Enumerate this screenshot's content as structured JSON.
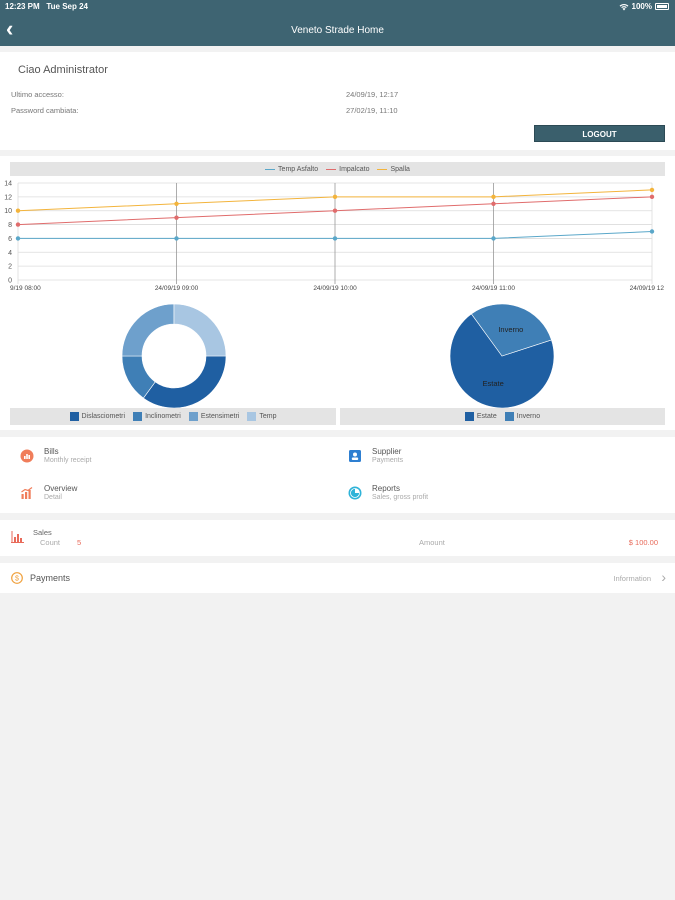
{
  "status": {
    "time": "12:23 PM",
    "date": "Tue Sep 24",
    "battery": "100%"
  },
  "nav": {
    "title": "Veneto Strade Home"
  },
  "user": {
    "greeting": "Ciao Administrator",
    "last_access_label": "Ultimo accesso:",
    "last_access_value": "24/09/19, 12:17",
    "pw_label": "Password cambiata:",
    "pw_value": "27/02/19, 11:10",
    "logout_label": "LOGOUT"
  },
  "chart_data": [
    {
      "type": "line",
      "title": "",
      "x": [
        "9/19 08:00",
        "24/09/19 09:00",
        "24/09/19 10:00",
        "24/09/19 11:00",
        "24/09/19 12"
      ],
      "ylim": [
        0,
        14
      ],
      "yticks": [
        0,
        2,
        4,
        6,
        8,
        10,
        12,
        14
      ],
      "grid": true,
      "legend_placement": "top",
      "series": [
        {
          "name": "Temp Asfalto",
          "color": "#5aa7c9",
          "values": [
            6,
            6,
            6,
            6,
            7
          ]
        },
        {
          "name": "Impalcato",
          "color": "#e06c6c",
          "values": [
            8,
            9,
            10,
            11,
            12
          ]
        },
        {
          "name": "Spalla",
          "color": "#f3b43c",
          "values": [
            10,
            11,
            12,
            12,
            13
          ]
        }
      ]
    },
    {
      "type": "pie",
      "variant": "donut",
      "labels": [
        "Dislasciometri",
        "Inclinometri",
        "Estensimetri",
        "Temp"
      ],
      "colors": [
        "#1f5fa2",
        "#3f7fb6",
        "#6ea0cc",
        "#a8c6e2"
      ],
      "values": [
        35,
        15,
        25,
        25
      ],
      "legend_placement": "bottom"
    },
    {
      "type": "pie",
      "labels": [
        "Estate",
        "Inverno"
      ],
      "colors": [
        "#1f5fa2",
        "#3f7fb6"
      ],
      "values": [
        70,
        30
      ],
      "slice_labels": [
        "Estate",
        "Inverno"
      ],
      "legend_placement": "bottom"
    }
  ],
  "menu": {
    "bills": {
      "title": "Bills",
      "sub": "Monthly receipt",
      "icon": "bills-icon",
      "color": "#f07d5a"
    },
    "supplier": {
      "title": "Supplier",
      "sub": "Payments",
      "icon": "supplier-icon",
      "color": "#2e7fd1"
    },
    "overview": {
      "title": "Overview",
      "sub": "Detail",
      "icon": "bar-chart-icon",
      "color": "#f07d5a"
    },
    "reports": {
      "title": "Reports",
      "sub": "Sales, gross profit",
      "icon": "pie-chart-icon",
      "color": "#2fb3d8"
    }
  },
  "sales": {
    "title": "Sales",
    "count_label": "Count",
    "count_value": "5",
    "amount_label": "Amount",
    "amount_value": "$ 100.00",
    "accent": "#e86a5a"
  },
  "payments": {
    "title": "Payments",
    "info": "Information"
  }
}
